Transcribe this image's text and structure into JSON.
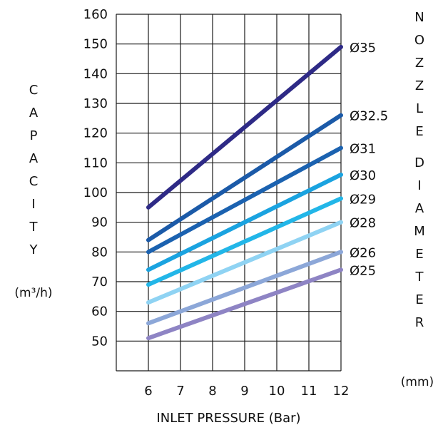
{
  "chart_data": {
    "type": "line",
    "xlabel": "INLET PRESSURE (Bar)",
    "ylabel": "CAPACITY",
    "yunit": "(m³/h)",
    "legend_title": "NOZZLE DIAMETER",
    "legend_unit": "(mm)",
    "xlim": [
      5,
      12
    ],
    "ylim": [
      40,
      160
    ],
    "x_ticks": [
      6,
      7,
      8,
      9,
      10,
      11,
      12
    ],
    "y_ticks": [
      50,
      60,
      70,
      80,
      90,
      100,
      110,
      120,
      130,
      140,
      150,
      160
    ],
    "grid": true,
    "legend_position": "right",
    "series": [
      {
        "name": "Ø35",
        "color": "#2E2A86",
        "points": [
          [
            6,
            95
          ],
          [
            12,
            149
          ]
        ]
      },
      {
        "name": "Ø32.5",
        "color": "#1B5AA8",
        "points": [
          [
            6,
            84
          ],
          [
            12,
            126
          ]
        ]
      },
      {
        "name": "Ø31",
        "color": "#1B62B0",
        "points": [
          [
            6,
            80
          ],
          [
            12,
            115
          ]
        ]
      },
      {
        "name": "Ø30",
        "color": "#1AA3E0",
        "points": [
          [
            6,
            74
          ],
          [
            12,
            106
          ]
        ]
      },
      {
        "name": "Ø29",
        "color": "#22B6E8",
        "points": [
          [
            6,
            69
          ],
          [
            12,
            98
          ]
        ]
      },
      {
        "name": "Ø28",
        "color": "#8FD3F3",
        "points": [
          [
            6,
            63
          ],
          [
            12,
            90
          ]
        ]
      },
      {
        "name": "Ø26",
        "color": "#8CA7D8",
        "points": [
          [
            6,
            56
          ],
          [
            12,
            80
          ]
        ]
      },
      {
        "name": "Ø25",
        "color": "#8E84C4",
        "points": [
          [
            6,
            51
          ],
          [
            12,
            74
          ]
        ]
      }
    ]
  }
}
